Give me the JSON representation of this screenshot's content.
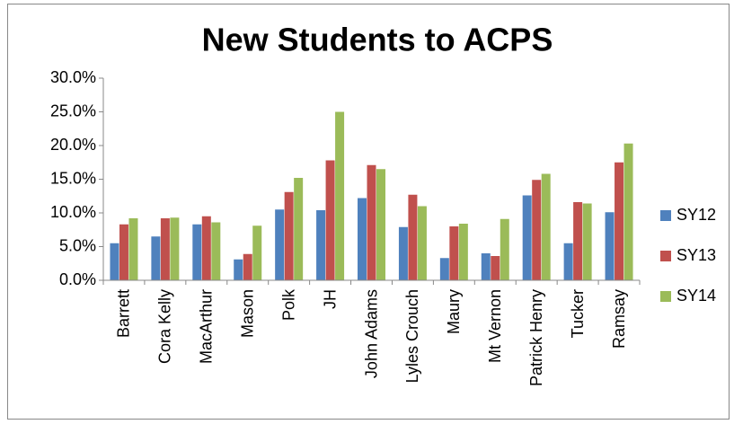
{
  "chart_data": {
    "type": "bar",
    "title": "New Students to ACPS",
    "categories": [
      "Barrett",
      "Cora Kelly",
      "MacArthur",
      "Mason",
      "Polk",
      "JH",
      "John Adams",
      "Lyles Crouch",
      "Maury",
      "Mt Vernon",
      "Patrick Henry",
      "Tucker",
      "Ramsay"
    ],
    "series": [
      {
        "name": "SY12",
        "color": "#4f81bd",
        "values": [
          5.5,
          6.5,
          8.3,
          3.1,
          10.5,
          10.4,
          12.2,
          7.9,
          3.3,
          4.0,
          12.6,
          5.5,
          10.1
        ]
      },
      {
        "name": "SY13",
        "color": "#c0504d",
        "values": [
          8.3,
          9.2,
          9.5,
          3.9,
          13.1,
          17.8,
          17.1,
          12.7,
          8.0,
          3.6,
          14.9,
          11.6,
          17.5
        ]
      },
      {
        "name": "SY14",
        "color": "#9bbb59",
        "values": [
          9.2,
          9.3,
          8.6,
          8.1,
          15.2,
          25.0,
          16.5,
          11.0,
          8.4,
          9.1,
          15.8,
          11.4,
          20.3
        ]
      }
    ],
    "ylim": [
      0,
      30
    ],
    "yticks": [
      {
        "value": 0,
        "label": "0.0%"
      },
      {
        "value": 5,
        "label": "5.0%"
      },
      {
        "value": 10,
        "label": "10.0%"
      },
      {
        "value": 15,
        "label": "15.0%"
      },
      {
        "value": 20,
        "label": "20.0%"
      },
      {
        "value": 25,
        "label": "25.0%"
      },
      {
        "value": 30,
        "label": "30.0%"
      }
    ],
    "grid": false,
    "legend": "right"
  }
}
